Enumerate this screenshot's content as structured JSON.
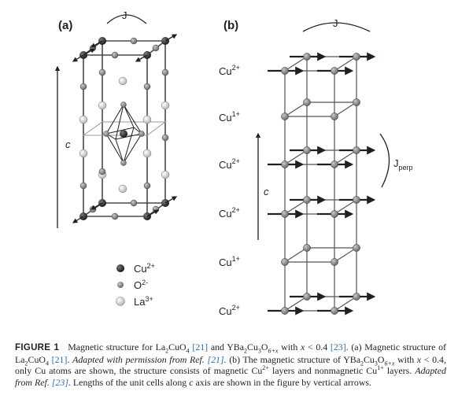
{
  "panel_a": {
    "label": "(a)",
    "exchange_label": "J",
    "axis_label": "c",
    "legend": [
      {
        "name": "Cu",
        "charge": "2+",
        "color": "#2b2b2b"
      },
      {
        "name": "O",
        "charge": "2-",
        "color": "#8a8a8a"
      },
      {
        "name": "La",
        "charge": "3+",
        "color": "#d4d4d4"
      }
    ]
  },
  "panel_b": {
    "label": "(b)",
    "exchange_label": "J",
    "interlayer_label": "J",
    "interlayer_sub": "perp",
    "axis_label": "c",
    "layers": [
      {
        "name": "Cu",
        "charge": "2+"
      },
      {
        "name": "Cu",
        "charge": "1+"
      },
      {
        "name": "Cu",
        "charge": "2+"
      },
      {
        "name": "Cu",
        "charge": "2+"
      },
      {
        "name": "Cu",
        "charge": "1+"
      },
      {
        "name": "Cu",
        "charge": "2+"
      }
    ]
  },
  "caption": {
    "label": "FIGURE 1",
    "s1": "Magnetic structure for La",
    "s2": "CuO",
    "s3": "and YBa",
    "s4": "Cu",
    "s5": "O",
    "s6": "with",
    "s7": "< 0.4",
    "s8": "(a) Magnetic structure of La",
    "s9": "CuO",
    "s10": "Adapted with permission from Ref.",
    "s11": "(b) The magnetic structure of YBa",
    "s12": "Cu",
    "s13": "O",
    "s14": "with",
    "s15": "< 0.4, only Cu atoms are shown, the structure consists of magnetic Cu",
    "s16": "layers and nonmagnetic Cu",
    "s17": "layers.",
    "s18": "Adapted from Ref.",
    "s19": "Lengths of the unit cells along",
    "s20": "axis are shown in the figure by vertical arrows.",
    "ref21": "[21]",
    "ref23": "[23]",
    "sub2": "2",
    "sub3": "3",
    "sub4": "4",
    "sub6x": "6+x",
    "var_x": "x",
    "var_c": "c",
    "sup2p": "2+",
    "sup1p": "1+"
  }
}
